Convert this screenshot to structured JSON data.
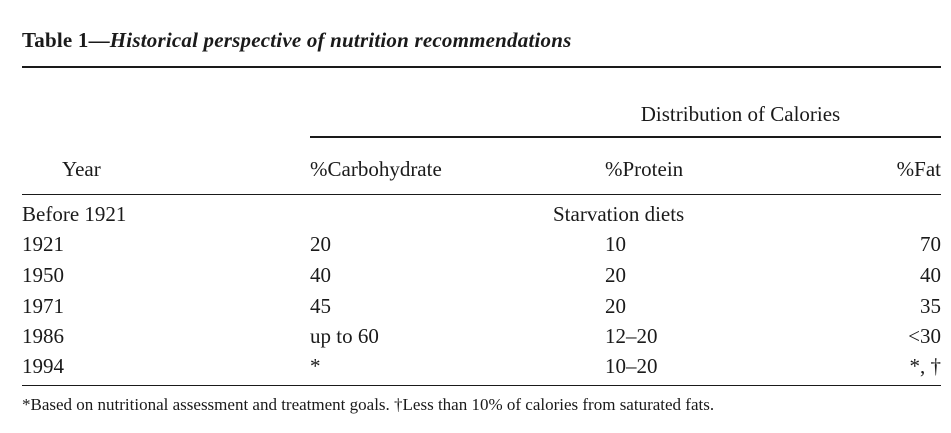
{
  "table": {
    "label": "Table 1—",
    "title": "Historical perspective of nutrition recommendations",
    "spanner": "Distribution of Calories",
    "headers": {
      "year": "Year",
      "carbohydrate": "%Carbohydrate",
      "protein": "%Protein",
      "fat": "%Fat"
    },
    "rows": [
      {
        "year": "Before 1921",
        "span": "Starvation diets"
      },
      {
        "year": "1921",
        "carbohydrate": "20",
        "protein": "10",
        "fat": "70"
      },
      {
        "year": "1950",
        "carbohydrate": "40",
        "protein": "20",
        "fat": "40"
      },
      {
        "year": "1971",
        "carbohydrate": "45",
        "protein": "20",
        "fat": "35"
      },
      {
        "year": "1986",
        "carbohydrate": "up to 60",
        "protein": "12–20",
        "fat": "<30"
      },
      {
        "year": "1994",
        "carbohydrate": "*",
        "protein": "10–20",
        "fat": "*, †"
      }
    ],
    "footnote": "*Based on nutritional assessment and treatment goals. †Less than 10% of calories from saturated fats."
  }
}
